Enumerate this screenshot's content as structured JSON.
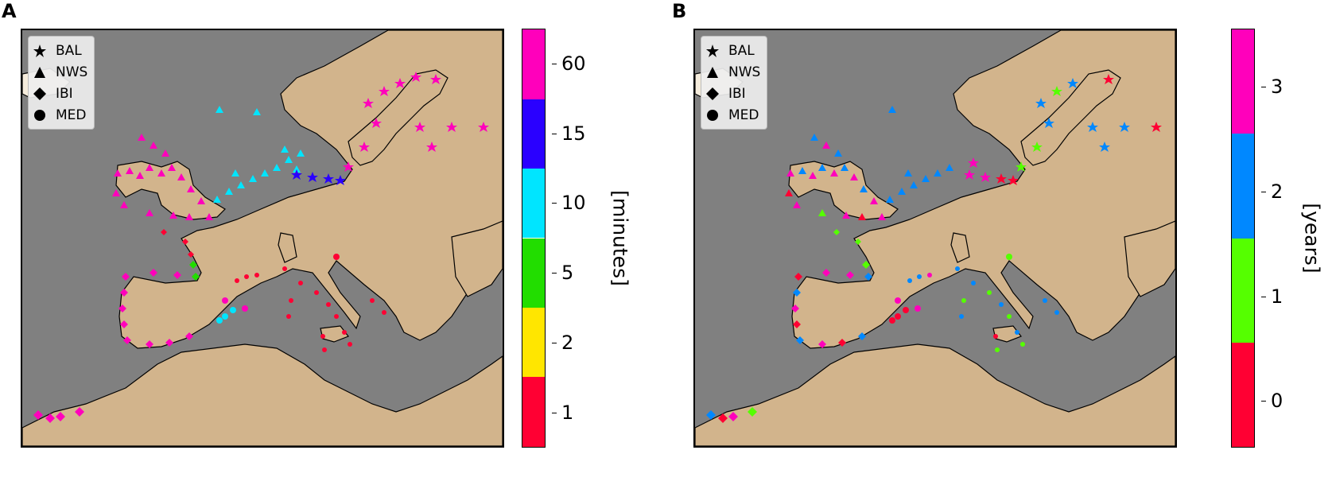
{
  "panels": [
    {
      "letter": "A",
      "legend": [
        {
          "label": "BAL",
          "marker": "star-icon"
        },
        {
          "label": "NWS",
          "marker": "triangle-icon"
        },
        {
          "label": "IBI",
          "marker": "diamond-icon"
        },
        {
          "label": "MED",
          "marker": "circle-icon"
        }
      ],
      "colorbar": {
        "label": "[minutes]",
        "ticks": [
          "1",
          "2",
          "5",
          "10",
          "15",
          "60"
        ],
        "colors": [
          "#ff0033",
          "#ffe600",
          "#22dd00",
          "#00e5ff",
          "#2a00ff",
          "#ff00bb"
        ]
      }
    },
    {
      "letter": "B",
      "legend": [
        {
          "label": "BAL",
          "marker": "star-icon"
        },
        {
          "label": "NWS",
          "marker": "triangle-icon"
        },
        {
          "label": "IBI",
          "marker": "diamond-icon"
        },
        {
          "label": "MED",
          "marker": "circle-icon"
        }
      ],
      "colorbar": {
        "label": "[years]",
        "ticks": [
          "0",
          "1",
          "2",
          "3"
        ],
        "colors": [
          "#ff0033",
          "#55ff00",
          "#0088ff",
          "#ff00bb"
        ]
      }
    }
  ],
  "colors": {
    "sea": "#808080",
    "land": "#d2b48c"
  }
}
